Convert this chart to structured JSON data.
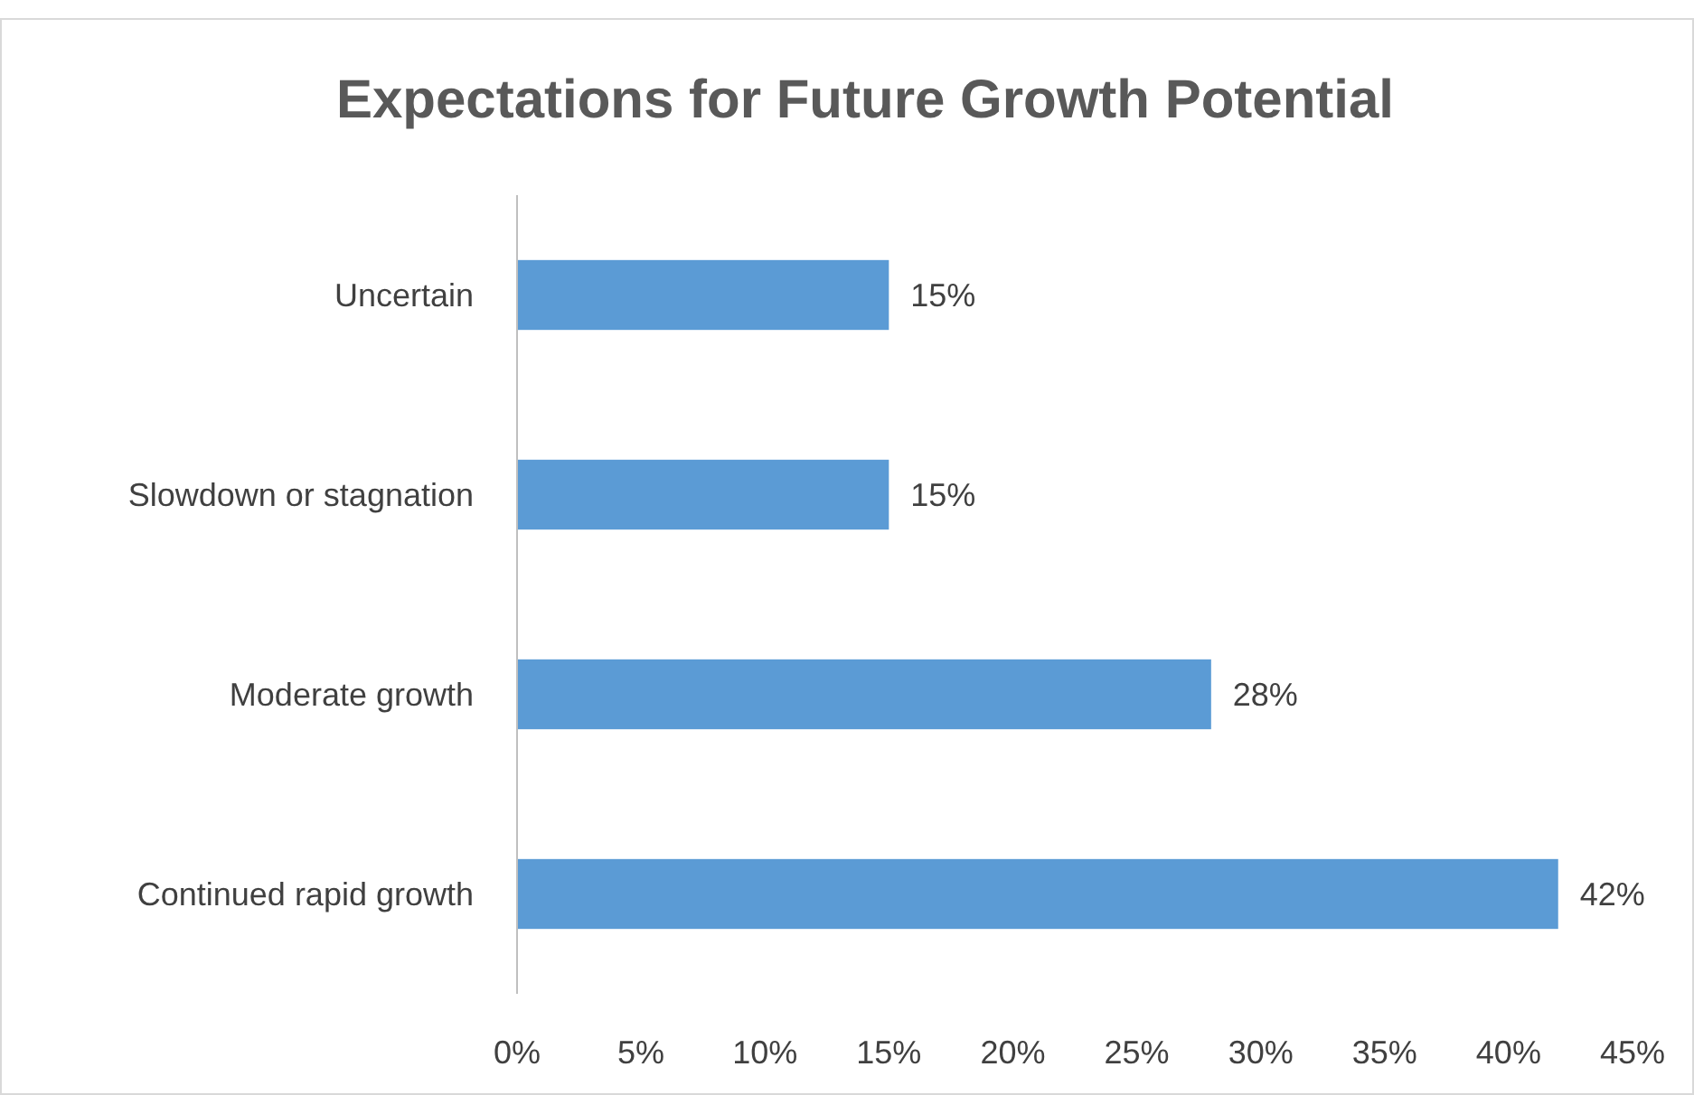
{
  "chart_data": {
    "type": "bar",
    "orientation": "horizontal",
    "title": "Expectations for Future Growth Potential",
    "categories": [
      "Uncertain",
      "Slowdown or stagnation",
      "Moderate growth",
      "Continued rapid growth"
    ],
    "values": [
      15,
      15,
      28,
      42
    ],
    "color": "#5b9bd5",
    "value_labels": [
      "15%",
      "15%",
      "28%",
      "42%"
    ],
    "xlim": [
      0,
      45
    ],
    "xticks": [
      {
        "value": 0,
        "label": "0%"
      },
      {
        "value": 5,
        "label": "5%"
      },
      {
        "value": 10,
        "label": "10%"
      },
      {
        "value": 15,
        "label": "15%"
      },
      {
        "value": 20,
        "label": "20%"
      },
      {
        "value": 25,
        "label": "25%"
      },
      {
        "value": 30,
        "label": "30%"
      },
      {
        "value": 35,
        "label": "35%"
      },
      {
        "value": 40,
        "label": "40%"
      },
      {
        "value": 45,
        "label": "45%"
      }
    ],
    "grid": false
  }
}
